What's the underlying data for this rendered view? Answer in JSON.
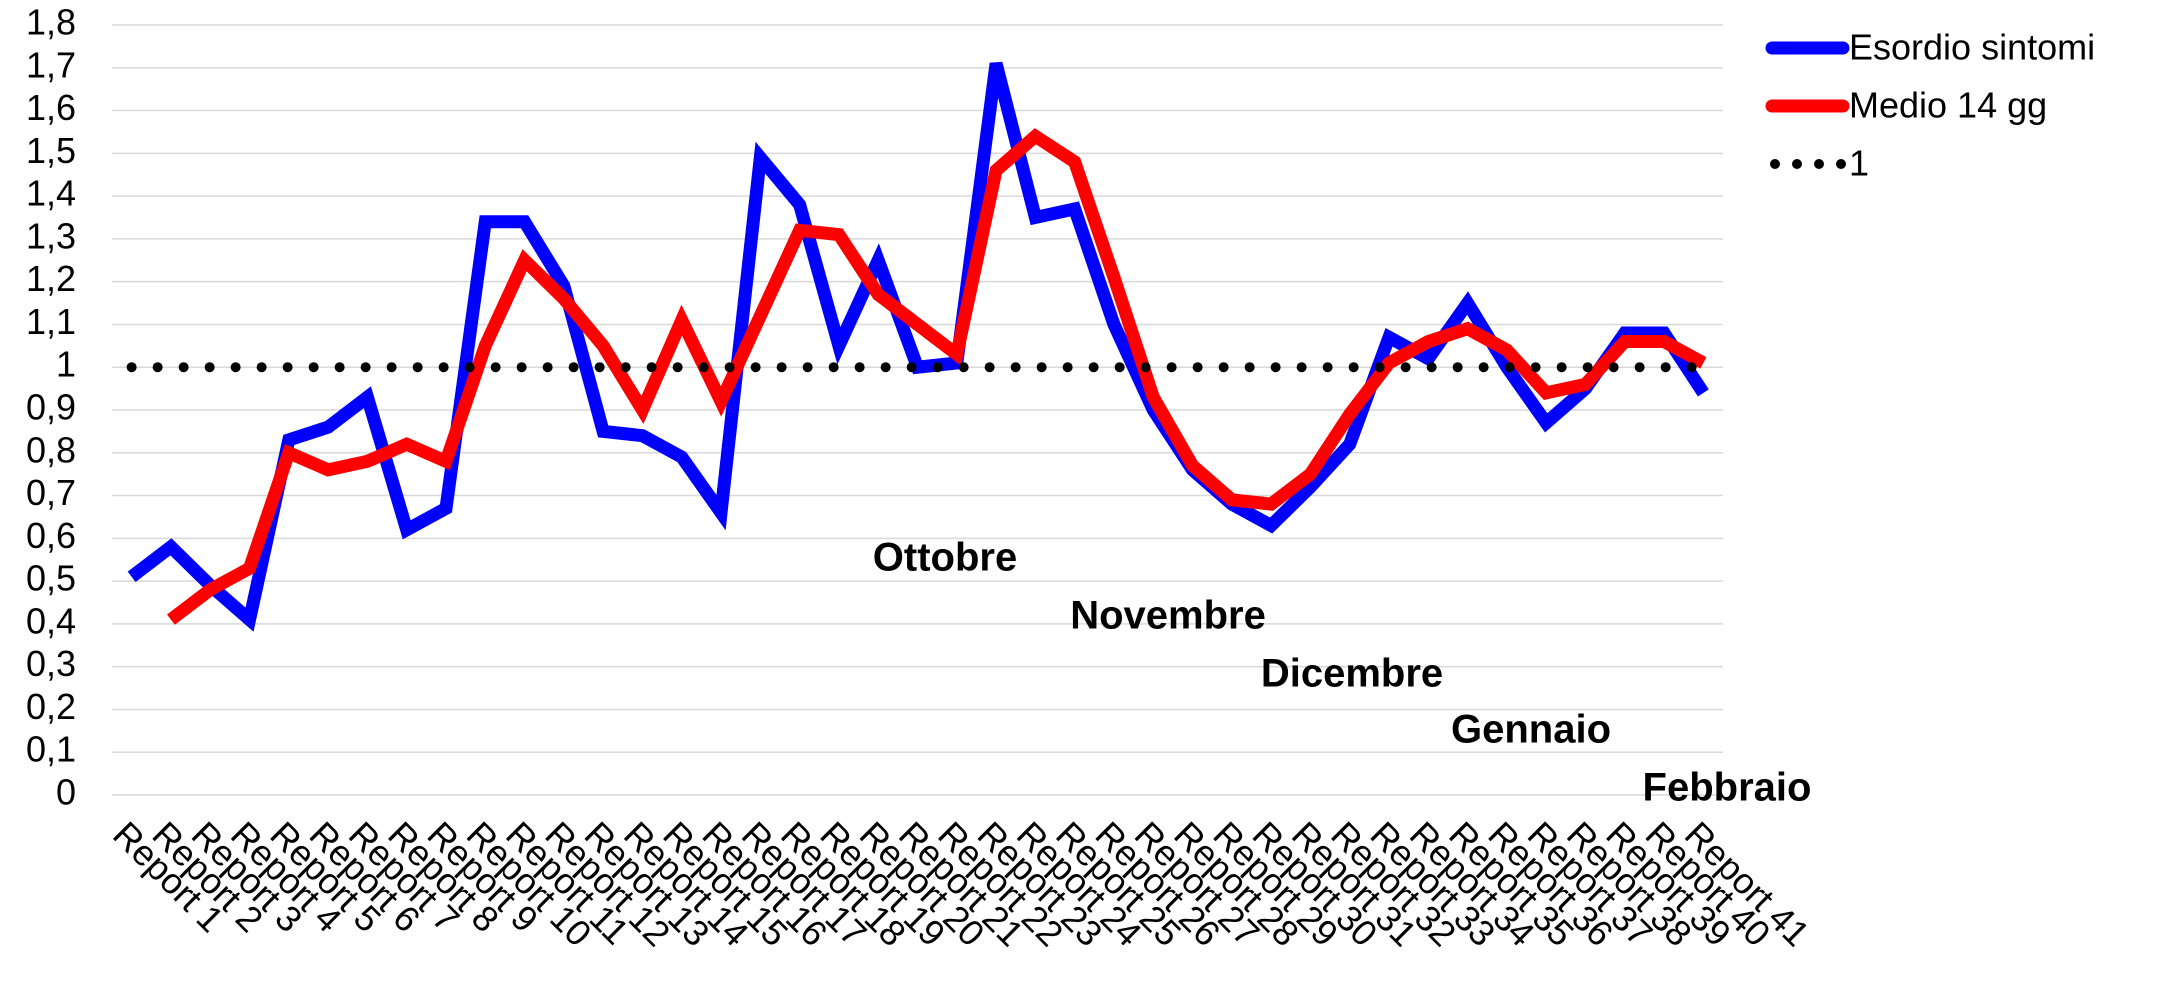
{
  "chart_data": {
    "type": "line",
    "categories": [
      "Report 1",
      "Report 2",
      "Report 3",
      "Report 4",
      "Report 5",
      "Report 6",
      "Report 7",
      "Report 8",
      "Report 9",
      "Report 10",
      "Report 11",
      "Report 12",
      "Report 13",
      "Report 14",
      "Report 15",
      "Report 16",
      "Report 17",
      "Report 18",
      "Report 19",
      "Report 20",
      "Report 21",
      "Report 22",
      "Report 23",
      "Report 24",
      "Report 25",
      "Report 26",
      "Report 27",
      "Report 28",
      "Report 29",
      "Report 30",
      "Report 31",
      "Report 32",
      "Report 33",
      "Report 34",
      "Report 35",
      "Report 36",
      "Report 37",
      "Report 38",
      "Report 39",
      "Report 40",
      "Report 41"
    ],
    "series": [
      {
        "name": "Esordio sintomi",
        "color": "#0000ff",
        "dash": "solid",
        "values": [
          0.51,
          0.58,
          0.49,
          0.41,
          0.83,
          0.86,
          0.93,
          0.62,
          0.67,
          1.34,
          1.34,
          1.19,
          0.85,
          0.84,
          0.79,
          0.66,
          1.49,
          1.38,
          1.05,
          1.25,
          1.0,
          1.01,
          1.71,
          1.35,
          1.37,
          1.1,
          0.9,
          0.76,
          0.68,
          0.63,
          0.72,
          0.82,
          1.07,
          1.02,
          1.15,
          1.0,
          0.87,
          0.95,
          1.08,
          1.08,
          0.94
        ]
      },
      {
        "name": "Medio 14 gg",
        "color": "#ff0000",
        "dash": "solid",
        "values": [
          null,
          0.41,
          0.48,
          0.53,
          0.8,
          0.76,
          0.78,
          0.82,
          0.78,
          1.05,
          1.25,
          1.16,
          1.05,
          0.9,
          1.11,
          0.92,
          1.12,
          1.32,
          1.31,
          1.17,
          1.1,
          1.03,
          1.46,
          1.54,
          1.48,
          1.21,
          0.93,
          0.77,
          0.69,
          0.68,
          0.75,
          0.89,
          1.01,
          1.06,
          1.09,
          1.04,
          0.94,
          0.96,
          1.06,
          1.06,
          1.01
        ]
      },
      {
        "name": "1",
        "color": "#000000",
        "dash": "dotted",
        "values": [
          1,
          1,
          1,
          1,
          1,
          1,
          1,
          1,
          1,
          1,
          1,
          1,
          1,
          1,
          1,
          1,
          1,
          1,
          1,
          1,
          1,
          1,
          1,
          1,
          1,
          1,
          1,
          1,
          1,
          1,
          1,
          1,
          1,
          1,
          1,
          1,
          1,
          1,
          1,
          1,
          1
        ]
      }
    ],
    "ylim": [
      0,
      1.8
    ],
    "yticks": [
      0,
      {
        "value": 0.1,
        "label": "0,1"
      },
      {
        "value": 0.2,
        "label": "0,2"
      },
      {
        "value": 0.3,
        "label": "0,3"
      },
      {
        "value": 0.4,
        "label": "0,4"
      },
      {
        "value": 0.5,
        "label": "0,5"
      },
      {
        "value": 0.6,
        "label": "0,6"
      },
      {
        "value": 0.7,
        "label": "0,7"
      },
      {
        "value": 0.8,
        "label": "0,8"
      },
      {
        "value": 0.9,
        "label": "0,9"
      },
      1,
      {
        "value": 1.1,
        "label": "1,1"
      },
      {
        "value": 1.2,
        "label": "1,2"
      },
      {
        "value": 1.3,
        "label": "1,3"
      },
      {
        "value": 1.4,
        "label": "1,4"
      },
      {
        "value": 1.5,
        "label": "1,5"
      },
      {
        "value": 1.6,
        "label": "1,6"
      },
      {
        "value": 1.7,
        "label": "1,7"
      },
      {
        "value": 1.8,
        "label": "1,8"
      }
    ],
    "grid": true,
    "legend": "top-right",
    "annotations": [
      "Ottobre",
      "Novembre",
      "Dicembre",
      "Gennaio",
      "Febbraio"
    ]
  }
}
